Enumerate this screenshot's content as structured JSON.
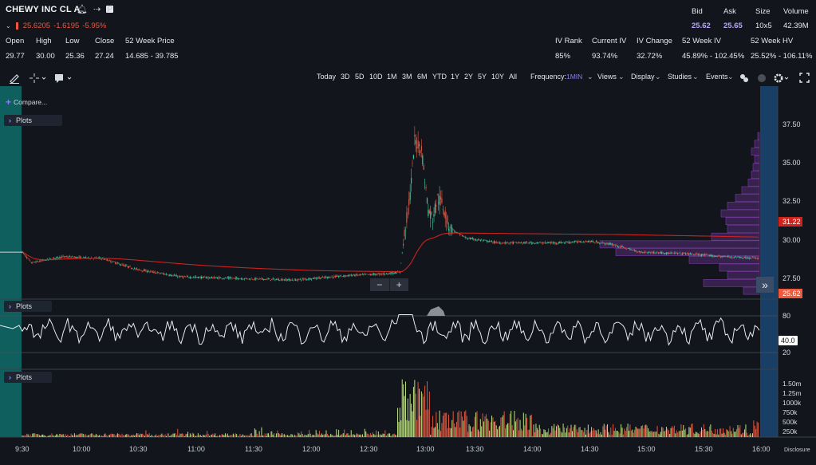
{
  "header": {
    "symbol": "CHEWY INC CL A",
    "last": "25.6205",
    "change": "-1.6195",
    "change_pct": "-5.95%",
    "badge": "P"
  },
  "stats": {
    "labels": [
      "Open",
      "High",
      "Low",
      "Close",
      "52 Week Price"
    ],
    "values": [
      "29.77",
      "30.00",
      "25.36",
      "27.24",
      "14.685 - 39.785"
    ]
  },
  "quote": {
    "labels": [
      "Bid",
      "Ask",
      "Size",
      "Volume"
    ],
    "values": [
      "25.62",
      "25.65",
      "10x5",
      "42.39M"
    ]
  },
  "iv": {
    "labels": [
      "IV Rank",
      "Current IV",
      "IV Change",
      "52 Week IV",
      "52 Week HV"
    ],
    "values": [
      "85%",
      "93.74%",
      "32.72%",
      "45.89% - 102.45%",
      "25.52% - 106.11%"
    ]
  },
  "toolbar": {
    "ranges": [
      "Today",
      "3D",
      "5D",
      "10D",
      "1M",
      "3M",
      "6M",
      "YTD",
      "1Y",
      "2Y",
      "5Y",
      "10Y",
      "All"
    ],
    "frequency_label": "Frequency:",
    "frequency_value": "1MIN",
    "menus": [
      "Views",
      "Display",
      "Studies",
      "Events"
    ]
  },
  "compare_label": "Compare...",
  "plots_label": "Plots",
  "price_axis": [
    "37.50",
    "35.00",
    "32.50",
    "30.00",
    "27.50"
  ],
  "price_markers": {
    "vwap": "31.22",
    "last": "25.62"
  },
  "osc_axis": [
    "80",
    "20"
  ],
  "osc_marker": "40.0",
  "vol_axis": [
    "1.50m",
    "1.25m",
    "1000k",
    "750k",
    "500k",
    "250k"
  ],
  "time_axis": [
    "9:30",
    "10:00",
    "10:30",
    "11:00",
    "11:30",
    "12:00",
    "12:30",
    "13:00",
    "13:30",
    "14:00",
    "14:30",
    "15:00",
    "15:30",
    "16:00"
  ],
  "disclosure": "Disclosure",
  "zoom": {
    "minus": "−",
    "plus": "+"
  },
  "colors": {
    "up": "#3ec7a0",
    "down": "#e0553f",
    "vwap": "#c8241f",
    "profile": "#7c3aa8",
    "premarket": "#0f7a75",
    "afterhours": "#1e4a7a"
  }
}
